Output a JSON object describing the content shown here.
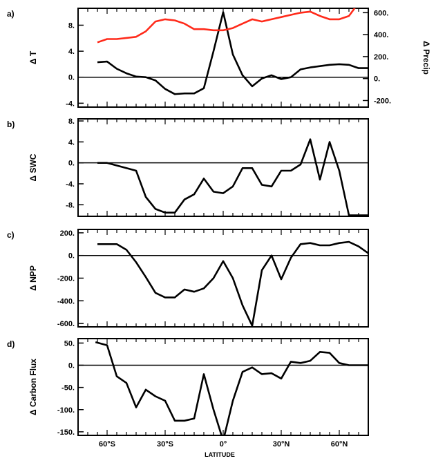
{
  "chart_data": [
    {
      "type": "line",
      "panel_label": "a)",
      "title": "",
      "xlabel": "",
      "ylabel": "Δ T",
      "ylabel_right": "Δ Precip",
      "xlim": [
        -75,
        75
      ],
      "ylim": [
        -4.6,
        10.6
      ],
      "yticks": [
        -4,
        0,
        4,
        8
      ],
      "ytick_labels": [
        "-4.",
        "0.",
        "4.",
        "8."
      ],
      "ylim_right": [
        -260,
        640
      ],
      "yticks_right": [
        -200,
        0,
        200,
        400,
        600
      ],
      "ytick_labels_right": [
        "-200.",
        "0.",
        "200.",
        "400.",
        "600."
      ],
      "zero_line": true,
      "series": [
        {
          "role": "dT",
          "color": "#000000",
          "axis": "left",
          "x": [
            -65,
            -60,
            -55,
            -50,
            -45,
            -40,
            -35,
            -30,
            -25,
            -20,
            -15,
            -10,
            -5,
            0,
            5,
            10,
            15,
            20,
            25,
            30,
            35,
            40,
            45,
            50,
            55,
            60,
            65,
            70,
            75
          ],
          "y": [
            2.3,
            2.4,
            1.3,
            0.6,
            0.1,
            0.0,
            -0.5,
            -1.8,
            -2.6,
            -2.5,
            -2.5,
            -1.7,
            4.0,
            10.0,
            3.5,
            0.3,
            -1.4,
            -0.2,
            0.3,
            -0.3,
            0.0,
            1.2,
            1.5,
            1.7,
            1.9,
            2.0,
            1.9,
            1.4,
            1.4
          ]
        },
        {
          "role": "dPrecip",
          "color": "#ff2a1a",
          "axis": "right",
          "x": [
            -65,
            -60,
            -55,
            -50,
            -45,
            -40,
            -35,
            -30,
            -25,
            -20,
            -15,
            -10,
            -5,
            0,
            5,
            10,
            15,
            20,
            25,
            30,
            35,
            40,
            45,
            50,
            55,
            60,
            65,
            70,
            75
          ],
          "y": [
            330,
            360,
            360,
            370,
            380,
            430,
            520,
            540,
            530,
            500,
            450,
            450,
            440,
            440,
            460,
            500,
            540,
            520,
            540,
            560,
            580,
            600,
            610,
            570,
            540,
            540,
            570,
            690,
            720
          ]
        }
      ]
    },
    {
      "type": "line",
      "panel_label": "b)",
      "title": "",
      "xlabel": "",
      "ylabel": "Δ SWC",
      "xlim": [
        -75,
        75
      ],
      "ylim": [
        -10.2,
        8.4
      ],
      "yticks": [
        -8,
        -4,
        0,
        4,
        8
      ],
      "ytick_labels": [
        "-8.",
        "-4.",
        "0.",
        "4.",
        "8."
      ],
      "zero_line": true,
      "series": [
        {
          "color": "#000000",
          "x": [
            -65,
            -60,
            -55,
            -50,
            -45,
            -40,
            -35,
            -30,
            -25,
            -20,
            -15,
            -10,
            -5,
            0,
            5,
            10,
            15,
            20,
            25,
            30,
            35,
            40,
            45,
            50,
            55,
            60,
            65,
            70,
            75
          ],
          "y": [
            0,
            0,
            -0.5,
            -1.0,
            -1.5,
            -6.5,
            -8.8,
            -9.5,
            -9.5,
            -7.0,
            -6.0,
            -3.0,
            -5.5,
            -5.8,
            -4.5,
            -1.0,
            -1.0,
            -4.2,
            -4.5,
            -1.5,
            -1.5,
            -0.3,
            4.5,
            -3.2,
            4.0,
            -1.5,
            -10.0,
            -10.0,
            -10.0
          ]
        }
      ]
    },
    {
      "type": "line",
      "panel_label": "c)",
      "title": "",
      "xlabel": "",
      "ylabel": "Δ NPP",
      "xlim": [
        -75,
        75
      ],
      "ylim": [
        -630,
        230
      ],
      "yticks": [
        -600,
        -400,
        -200,
        0,
        200
      ],
      "ytick_labels": [
        "-600.",
        "-400.",
        "-200.",
        "0.",
        "200."
      ],
      "zero_line": true,
      "series": [
        {
          "color": "#000000",
          "x": [
            -65,
            -60,
            -55,
            -50,
            -45,
            -40,
            -35,
            -30,
            -25,
            -20,
            -15,
            -10,
            -5,
            0,
            5,
            10,
            15,
            20,
            25,
            30,
            35,
            40,
            45,
            50,
            55,
            60,
            65,
            70,
            75
          ],
          "y": [
            100,
            100,
            100,
            50,
            -60,
            -190,
            -330,
            -370,
            -370,
            -300,
            -320,
            -290,
            -200,
            -50,
            -200,
            -440,
            -620,
            -130,
            0,
            -210,
            -20,
            100,
            110,
            90,
            90,
            110,
            120,
            80,
            20
          ]
        }
      ]
    },
    {
      "type": "line",
      "panel_label": "d)",
      "title": "",
      "xlabel": "LATITUDE",
      "ylabel": "Δ Carbon Flux",
      "xlim": [
        -75,
        75
      ],
      "ylim": [
        -158,
        60
      ],
      "yticks": [
        -150,
        -100,
        -50,
        0,
        50
      ],
      "ytick_labels": [
        "-150.",
        "-100.",
        "-50.",
        "0.",
        "50."
      ],
      "xticks": [
        -60,
        -30,
        0,
        30,
        60
      ],
      "xtick_labels": [
        "60°S",
        "30°S",
        "0°",
        "30°N",
        "60°N"
      ],
      "zero_line": true,
      "series": [
        {
          "color": "#000000",
          "x": [
            -66,
            -60,
            -55,
            -50,
            -45,
            -40,
            -35,
            -30,
            -25,
            -20,
            -15,
            -10,
            -5,
            0,
            5,
            10,
            15,
            20,
            25,
            30,
            35,
            40,
            45,
            50,
            55,
            60,
            65,
            70,
            75
          ],
          "y": [
            52,
            45,
            -25,
            -40,
            -95,
            -55,
            -70,
            -80,
            -125,
            -125,
            -120,
            -20,
            -100,
            -170,
            -80,
            -15,
            -5,
            -20,
            -18,
            -30,
            8,
            5,
            10,
            30,
            28,
            5,
            0,
            0,
            0
          ]
        }
      ]
    }
  ]
}
